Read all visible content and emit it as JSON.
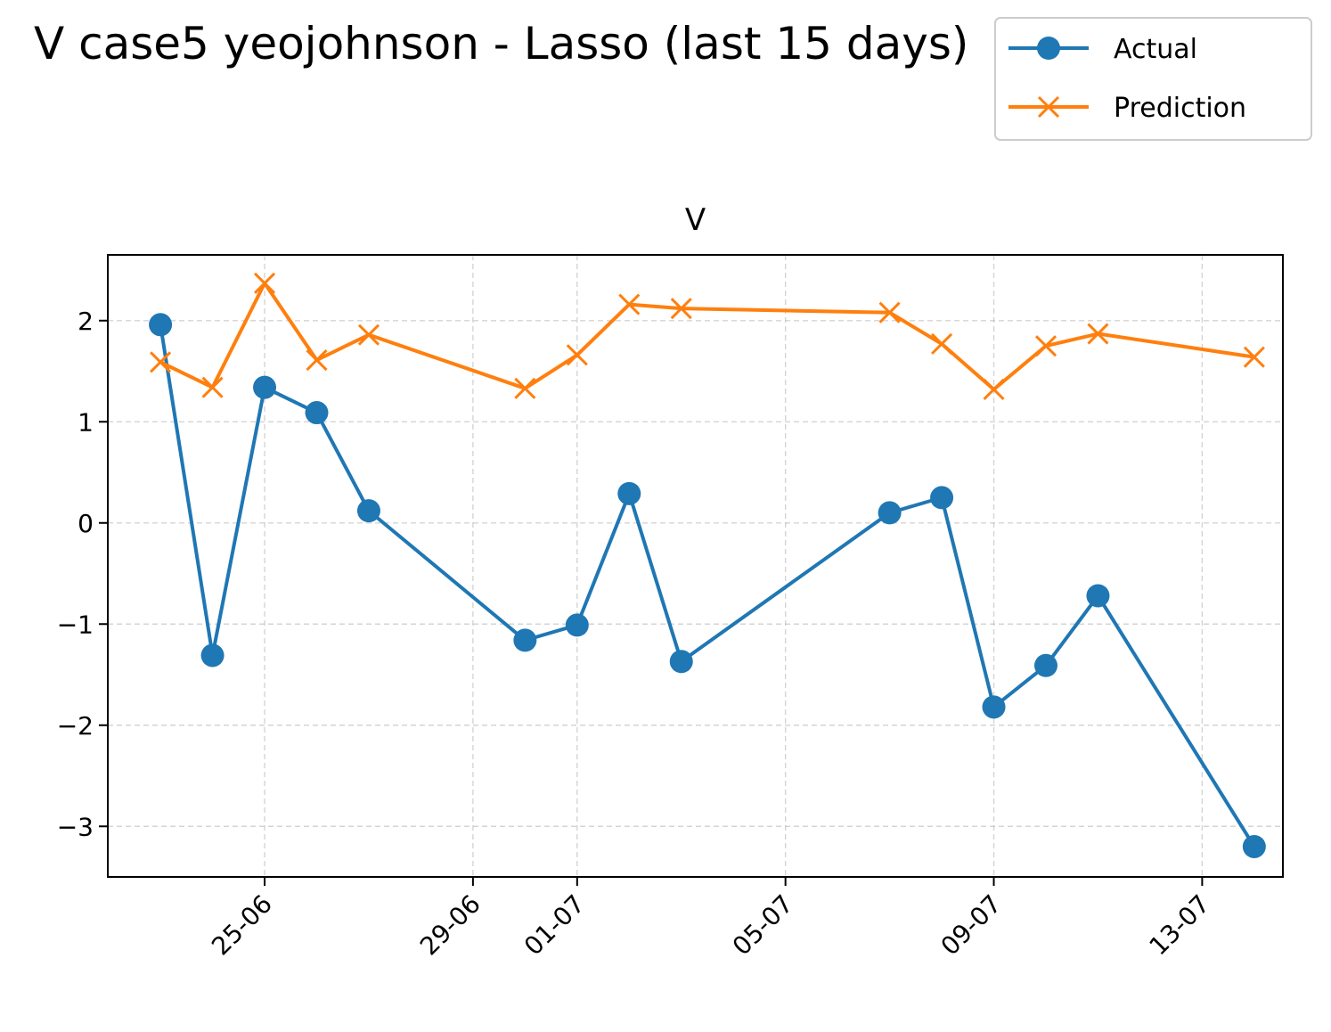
{
  "suptitle": "V case5 yeojohnson - Lasso (last 15 days)",
  "chart_data": {
    "type": "line",
    "title": "V",
    "xlabel": "",
    "ylabel": "",
    "x": [
      "2025-06-23",
      "2025-06-24",
      "2025-06-25",
      "2025-06-26",
      "2025-06-27",
      "2025-06-30",
      "2025-07-01",
      "2025-07-02",
      "2025-07-03",
      "2025-07-07",
      "2025-07-08",
      "2025-07-09",
      "2025-07-10",
      "2025-07-11",
      "2025-07-14"
    ],
    "x_ticks": [
      "25-06",
      "29-06",
      "01-07",
      "05-07",
      "09-07",
      "13-07"
    ],
    "x_tick_dates": [
      "2025-06-25",
      "2025-06-29",
      "2025-07-01",
      "2025-07-05",
      "2025-07-09",
      "2025-07-13"
    ],
    "xlim": [
      "2025-06-22",
      "2025-07-14"
    ],
    "y_ticks": [
      "2",
      "1",
      "0",
      "−1",
      "−2",
      "−3"
    ],
    "y_tick_values": [
      2,
      1,
      0,
      -1,
      -2,
      -3
    ],
    "ylim": [
      -3.5,
      2.65
    ],
    "grid": true,
    "legend_position": "top-right",
    "series": [
      {
        "name": "Actual",
        "color": "#1f77b4",
        "marker": "circle",
        "values": [
          1.96,
          -1.31,
          1.34,
          1.09,
          0.12,
          -1.16,
          -1.01,
          0.29,
          -1.37,
          0.1,
          0.25,
          -1.82,
          -1.41,
          -0.72,
          -3.2
        ]
      },
      {
        "name": "Prediction",
        "color": "#ff7f0e",
        "marker": "x",
        "values": [
          1.59,
          1.34,
          2.37,
          1.61,
          1.86,
          1.33,
          1.66,
          2.16,
          2.12,
          2.08,
          1.77,
          1.32,
          1.75,
          1.87,
          1.64
        ]
      }
    ]
  }
}
